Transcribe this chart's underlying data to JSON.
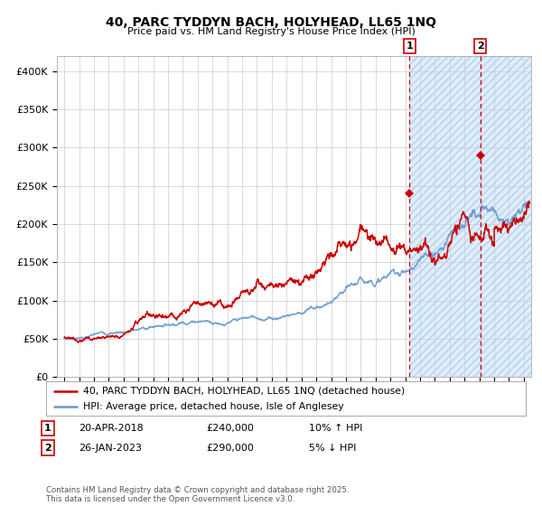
{
  "title": "40, PARC TYDDYN BACH, HOLYHEAD, LL65 1NQ",
  "subtitle": "Price paid vs. HM Land Registry's House Price Index (HPI)",
  "legend_line1": "40, PARC TYDDYN BACH, HOLYHEAD, LL65 1NQ (detached house)",
  "legend_line2": "HPI: Average price, detached house, Isle of Anglesey",
  "annotation1_label": "1",
  "annotation1_date": "20-APR-2018",
  "annotation1_price": "£240,000",
  "annotation1_hpi": "10% ↑ HPI",
  "annotation1_year": 2018.3,
  "annotation1_value": 240000,
  "annotation2_label": "2",
  "annotation2_date": "26-JAN-2023",
  "annotation2_price": "£290,000",
  "annotation2_hpi": "5% ↓ HPI",
  "annotation2_year": 2023.07,
  "annotation2_value": 290000,
  "red_line_color": "#cc0000",
  "blue_line_color": "#6699cc",
  "fill_color": "#ddeeff",
  "background_color": "#ffffff",
  "grid_color": "#cccccc",
  "ylim": [
    0,
    420000
  ],
  "xlim_start": 1994.5,
  "xlim_end": 2026.5,
  "yticks": [
    0,
    50000,
    100000,
    150000,
    200000,
    250000,
    300000,
    350000,
    400000
  ],
  "ytick_labels": [
    "£0",
    "£50K",
    "£100K",
    "£150K",
    "£200K",
    "£250K",
    "£300K",
    "£350K",
    "£400K"
  ],
  "xticks": [
    1995,
    1996,
    1997,
    1998,
    1999,
    2000,
    2001,
    2002,
    2003,
    2004,
    2005,
    2006,
    2007,
    2008,
    2009,
    2010,
    2011,
    2012,
    2013,
    2014,
    2015,
    2016,
    2017,
    2018,
    2019,
    2020,
    2021,
    2022,
    2023,
    2024,
    2025,
    2026
  ],
  "footer": "Contains HM Land Registry data © Crown copyright and database right 2025.\nThis data is licensed under the Open Government Licence v3.0.",
  "shade_start": 2018.3,
  "shade_end": 2026.5
}
